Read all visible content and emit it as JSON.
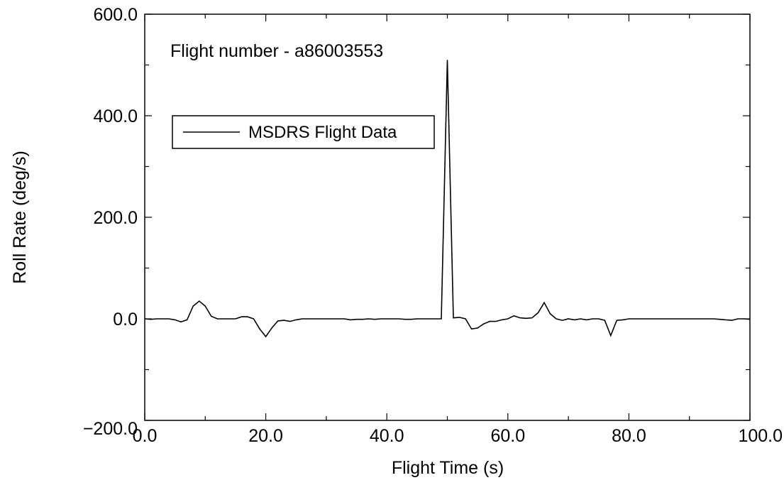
{
  "chart_data": {
    "type": "line",
    "title": "",
    "annotation": "Flight number - a86003553",
    "xlabel": "Flight Time (s)",
    "ylabel": "Roll Rate (deg/s)",
    "xlim": [
      0,
      100
    ],
    "ylim": [
      -200,
      600
    ],
    "x_ticks": [
      0,
      20,
      40,
      60,
      80,
      100
    ],
    "x_tick_labels": [
      "0.0",
      "20.0",
      "40.0",
      "60.0",
      "80.0",
      "100.0"
    ],
    "y_ticks": [
      -200,
      0,
      200,
      400,
      600
    ],
    "y_tick_labels": [
      "−200.0",
      "0.0",
      "200.0",
      "400.0",
      "600.0"
    ],
    "grid": false,
    "legend": {
      "placement": "upper-left"
    },
    "series": [
      {
        "name": "MSDRS Flight Data",
        "color": "#000000",
        "x": [
          0,
          1,
          2,
          3,
          4,
          5,
          6,
          7,
          8,
          9,
          10,
          11,
          12,
          13,
          14,
          15,
          16,
          17,
          18,
          19,
          20,
          21,
          22,
          23,
          24,
          25,
          26,
          27,
          28,
          29,
          30,
          31,
          32,
          33,
          34,
          35,
          36,
          37,
          38,
          39,
          40,
          41,
          42,
          43,
          44,
          45,
          46,
          47,
          48,
          49,
          50,
          51,
          52,
          53,
          54,
          55,
          56,
          57,
          58,
          59,
          60,
          61,
          62,
          63,
          64,
          65,
          66,
          67,
          68,
          69,
          70,
          71,
          72,
          73,
          74,
          75,
          76,
          77,
          78,
          79,
          80,
          81,
          82,
          83,
          84,
          85,
          86,
          87,
          88,
          89,
          90,
          91,
          92,
          93,
          94,
          95,
          96,
          97,
          98,
          99,
          100
        ],
        "y": [
          0,
          -1,
          0,
          0,
          0,
          -2,
          -6,
          -2,
          25,
          35,
          25,
          5,
          0,
          0,
          0,
          0,
          4,
          4,
          0,
          -20,
          -35,
          -18,
          -4,
          -3,
          -5,
          -2,
          0,
          0,
          0,
          0,
          0,
          0,
          0,
          0,
          -2,
          -1,
          -1,
          0,
          -1,
          0,
          0,
          0,
          0,
          -1,
          -1,
          0,
          0,
          0,
          0,
          0,
          510,
          2,
          3,
          0,
          -20,
          -18,
          -10,
          -5,
          -5,
          -2,
          0,
          6,
          2,
          1,
          2,
          12,
          32,
          10,
          0,
          -3,
          0,
          -2,
          0,
          -2,
          0,
          0,
          -3,
          -33,
          -3,
          -2,
          0,
          0,
          0,
          0,
          0,
          0,
          0,
          0,
          0,
          0,
          0,
          0,
          0,
          0,
          0,
          -1,
          -2,
          -3,
          0,
          0,
          -1
        ]
      }
    ]
  }
}
